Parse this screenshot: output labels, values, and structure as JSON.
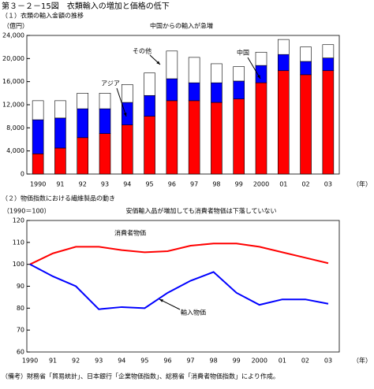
{
  "header": {
    "title": "第３－２－15図　衣類輸入の増加と価格の低下"
  },
  "chart_data": [
    {
      "type": "bar",
      "subtitle": "（１）衣類の輸入金額の推移",
      "y_label": "（億円）",
      "x_label": "（年）",
      "annotation": "中国からの輸入が急増",
      "stacked": true,
      "categories": [
        "1990",
        "91",
        "92",
        "93",
        "94",
        "95",
        "96",
        "97",
        "98",
        "99",
        "2000",
        "01",
        "02",
        "03"
      ],
      "series": [
        {
          "name": "中国",
          "color": "#ff0000",
          "values": [
            3500,
            4500,
            6300,
            7000,
            8500,
            10000,
            12700,
            12700,
            12400,
            13000,
            15800,
            17900,
            17200,
            17900
          ]
        },
        {
          "name": "アジア",
          "color": "#0000ff",
          "values": [
            5900,
            5200,
            5000,
            4300,
            3900,
            3600,
            3800,
            3100,
            3400,
            3100,
            3000,
            2800,
            2300,
            2200
          ]
        },
        {
          "name": "その他",
          "color": "#ffffff",
          "values": [
            3300,
            3000,
            2700,
            2700,
            3100,
            3900,
            4800,
            4400,
            3300,
            2500,
            2300,
            2600,
            2500,
            2300
          ]
        }
      ],
      "ylim": [
        0,
        24000
      ],
      "yticks": [
        0,
        {
          "value": 4000,
          "label": "4,000"
        },
        {
          "value": 8000,
          "label": "8,000"
        },
        {
          "value": 12000,
          "label": "12,000"
        },
        {
          "value": 16000,
          "label": "16,000"
        },
        {
          "value": 20000,
          "label": "20,000"
        },
        {
          "value": 24000,
          "label": "24,000"
        }
      ]
    },
    {
      "type": "line",
      "subtitle": "（２）物価指数における繊維製品の動き",
      "y_label": "（1990＝100）",
      "x_label": "（年）",
      "annotation": "安価輸入品が増加しても消費者物価は下落していない",
      "categories": [
        "1990",
        "91",
        "92",
        "93",
        "94",
        "95",
        "96",
        "97",
        "98",
        "99",
        "2000",
        "01",
        "02",
        "03"
      ],
      "series": [
        {
          "name": "消費者物価",
          "color": "#ff0000",
          "values": [
            100,
            105,
            108,
            108,
            106.5,
            105.5,
            106,
            108.5,
            109.5,
            109.5,
            108,
            105.5,
            103,
            100.5
          ]
        },
        {
          "name": "輸入物価",
          "color": "#0000ff",
          "values": [
            100,
            94.5,
            90,
            79.5,
            80.5,
            80,
            87,
            92.5,
            96.5,
            87,
            81.5,
            84,
            84,
            82
          ]
        }
      ],
      "ylim": [
        60,
        120
      ],
      "yticks": [
        60,
        70,
        80,
        90,
        100,
        110,
        120
      ]
    }
  ],
  "note": "（備考）財務省「貿易統計」、日本銀行「企業物価指数」、総務省「消費者物価指数」により作成。"
}
